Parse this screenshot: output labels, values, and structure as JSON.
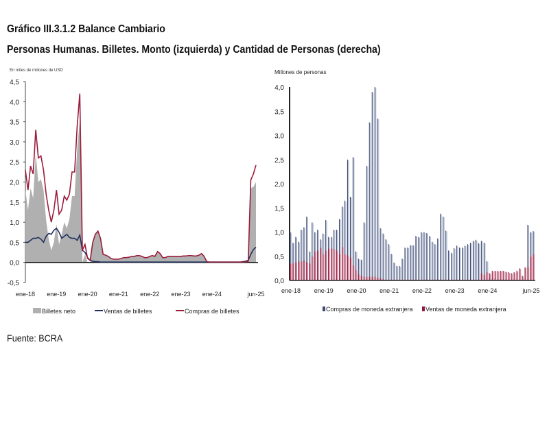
{
  "title": "Gráfico III.3.1.2 Balance Cambiario",
  "subtitle": "Personas Humanas. Billetes. Monto (izquierda) y Cantidad de Personas (derecha)",
  "source": "Fuente: BCRA",
  "colors": {
    "neto": "#b0b0b0",
    "ventas": "#1f2f5e",
    "compras": "#9b1b3a",
    "compras_bar": "#3d4a70",
    "ventas_bar": "#8e1b3c",
    "compras_bar_light": "#b9c2d6",
    "ventas_bar_light": "#d98ea3"
  },
  "chart_data": [
    {
      "type": "line",
      "ylabel": "En miles de millones de USD",
      "ylim": [
        -0.5,
        4.5
      ],
      "yticks": [
        "4,5",
        "4,0",
        "3,5",
        "3,0",
        "2,5",
        "2,0",
        "1,5",
        "1,0",
        "0,5",
        "0,0",
        "-0,5"
      ],
      "xticks": [
        {
          "label": "ene-18",
          "i": 0
        },
        {
          "label": "ene-19",
          "i": 12
        },
        {
          "label": "ene-20",
          "i": 24
        },
        {
          "label": "ene-21",
          "i": 36
        },
        {
          "label": "ene-22",
          "i": 48
        },
        {
          "label": "ene-23",
          "i": 60
        },
        {
          "label": "ene-24",
          "i": 72
        },
        {
          "label": "jun-25",
          "i": 89
        }
      ],
      "x_range": "ene-18 to jun-25 (monthly)",
      "series": [
        {
          "name": "Billetes neto",
          "type": "area",
          "values": [
            1.8,
            1.3,
            1.85,
            1.6,
            2.7,
            2.0,
            2.07,
            1.8,
            1.05,
            0.58,
            0.3,
            0.5,
            0.95,
            0.45,
            0.7,
            1.0,
            0.85,
            1.08,
            1.65,
            1.65,
            2.85,
            3.52,
            0.0,
            0.2,
            0.0,
            0.0,
            0.47,
            0.68,
            0.76,
            0.59,
            0.19,
            0.17,
            0.14,
            0.09,
            0.07,
            0.07,
            0.07,
            0.09,
            0.11,
            0.11,
            0.12,
            0.14,
            0.14,
            0.16,
            0.16,
            0.14,
            0.11,
            0.11,
            0.14,
            0.16,
            0.14,
            0.26,
            0.21,
            0.11,
            0.11,
            0.14,
            0.14,
            0.14,
            0.14,
            0.14,
            0.14,
            0.15,
            0.15,
            0.16,
            0.16,
            0.15,
            0.15,
            0.17,
            0.21,
            0.14,
            0.01,
            0.0,
            0,
            0,
            0,
            0,
            0,
            0,
            0,
            0,
            0,
            0,
            0,
            0,
            0,
            0,
            0,
            1.85,
            1.88,
            2.0
          ]
        },
        {
          "name": "Ventas de billetes",
          "type": "line",
          "values": [
            0.5,
            0.5,
            0.55,
            0.6,
            0.6,
            0.62,
            0.58,
            0.5,
            0.65,
            0.72,
            0.7,
            0.8,
            0.85,
            0.75,
            0.6,
            0.65,
            0.7,
            0.62,
            0.6,
            0.6,
            0.55,
            0.68,
            0.3,
            0.25,
            0.12,
            0.05,
            0.03,
            0.02,
            0.02,
            0.01,
            0.01,
            0.01,
            0.01,
            0.01,
            0.01,
            0.01,
            0.01,
            0.01,
            0.01,
            0.01,
            0.01,
            0.01,
            0.01,
            0.01,
            0.01,
            0.01,
            0.01,
            0.01,
            0.01,
            0.01,
            0.01,
            0.01,
            0.01,
            0.01,
            0.01,
            0.01,
            0.01,
            0.01,
            0.01,
            0.01,
            0.01,
            0.01,
            0.01,
            0.01,
            0.01,
            0.01,
            0.01,
            0.01,
            0.01,
            0.01,
            0.01,
            0.01,
            0.01,
            0.01,
            0.01,
            0.01,
            0.01,
            0.01,
            0.01,
            0.01,
            0.01,
            0.01,
            0.01,
            0.01,
            0.02,
            0.03,
            0.05,
            0.2,
            0.32,
            0.38
          ]
        },
        {
          "name": "Compras de billetes",
          "type": "line",
          "values": [
            2.3,
            1.8,
            2.4,
            2.2,
            3.3,
            2.6,
            2.65,
            2.3,
            1.7,
            1.3,
            1.0,
            1.3,
            1.8,
            1.2,
            1.3,
            1.65,
            1.55,
            1.7,
            2.25,
            2.25,
            3.4,
            4.2,
            0.3,
            0.45,
            0.1,
            0.05,
            0.5,
            0.7,
            0.78,
            0.6,
            0.2,
            0.18,
            0.15,
            0.1,
            0.08,
            0.08,
            0.08,
            0.1,
            0.12,
            0.12,
            0.13,
            0.15,
            0.15,
            0.17,
            0.17,
            0.15,
            0.12,
            0.12,
            0.15,
            0.17,
            0.15,
            0.27,
            0.22,
            0.12,
            0.12,
            0.15,
            0.15,
            0.15,
            0.15,
            0.15,
            0.15,
            0.16,
            0.16,
            0.17,
            0.17,
            0.16,
            0.16,
            0.18,
            0.22,
            0.15,
            0.02,
            0.01,
            0.01,
            0.01,
            0.01,
            0.01,
            0.01,
            0.01,
            0.01,
            0.01,
            0.01,
            0.01,
            0.01,
            0.01,
            0.01,
            0.02,
            0.02,
            2.05,
            2.2,
            2.42
          ]
        }
      ]
    },
    {
      "type": "bar",
      "ylabel": "Millones de personas",
      "ylim": [
        0,
        4.0
      ],
      "yticks": [
        "4,0",
        "3,5",
        "3,0",
        "2,5",
        "2,0",
        "1,5",
        "1,0",
        "0,5",
        "0,0"
      ],
      "xticks": [
        {
          "label": "ene-18",
          "i": 0
        },
        {
          "label": "ene-19",
          "i": 12
        },
        {
          "label": "ene-20",
          "i": 24
        },
        {
          "label": "ene-21",
          "i": 36
        },
        {
          "label": "ene-22",
          "i": 48
        },
        {
          "label": "ene-23",
          "i": 60
        },
        {
          "label": "ene-24",
          "i": 72
        },
        {
          "label": "jun-25",
          "i": 89
        }
      ],
      "series": [
        {
          "name": "Compras de moneda extranjera",
          "values": [
            1.0,
            0.78,
            0.9,
            0.8,
            1.05,
            1.1,
            1.32,
            0.6,
            1.2,
            1.0,
            1.05,
            0.85,
            0.97,
            1.25,
            0.9,
            0.9,
            1.05,
            1.05,
            1.27,
            1.53,
            1.65,
            2.5,
            1.73,
            2.55,
            0.6,
            0.45,
            0.43,
            1.2,
            2.37,
            3.27,
            3.9,
            4.0,
            3.35,
            1.08,
            0.97,
            0.85,
            0.75,
            0.55,
            0.37,
            0.3,
            0.3,
            0.45,
            0.68,
            0.68,
            0.73,
            0.73,
            0.92,
            0.9,
            1.0,
            1.0,
            0.98,
            0.92,
            0.8,
            0.75,
            0.87,
            1.38,
            1.32,
            1.03,
            0.62,
            0.57,
            0.67,
            0.72,
            0.68,
            0.68,
            0.72,
            0.75,
            0.78,
            0.82,
            0.84,
            0.77,
            0.82,
            0.78,
            0.4,
            0.05,
            0.05,
            0.05,
            0.03,
            0.03,
            0.03,
            0.03,
            0.03,
            0.03,
            0.03,
            0.03,
            0.03,
            0.1,
            0.03,
            1.15,
            1.0,
            1.02
          ]
        },
        {
          "name": "Ventas de moneda extranjera",
          "values": [
            0.35,
            0.36,
            0.38,
            0.4,
            0.4,
            0.42,
            0.38,
            0.36,
            0.5,
            0.6,
            0.62,
            0.68,
            0.55,
            0.62,
            0.66,
            0.67,
            0.65,
            0.62,
            0.55,
            0.7,
            0.55,
            0.52,
            0.48,
            0.32,
            0.22,
            0.13,
            0.1,
            0.08,
            0.08,
            0.08,
            0.08,
            0.08,
            0.06,
            0.05,
            0.03,
            0.02,
            0.02,
            0.02,
            0.02,
            0.02,
            0.02,
            0.02,
            0.02,
            0.02,
            0.02,
            0.02,
            0.02,
            0.02,
            0.02,
            0.02,
            0.02,
            0.02,
            0.02,
            0.02,
            0.02,
            0.02,
            0.02,
            0.02,
            0.02,
            0.02,
            0.02,
            0.02,
            0.02,
            0.02,
            0.02,
            0.02,
            0.02,
            0.02,
            0.02,
            0.02,
            0.15,
            0.12,
            0.18,
            0.15,
            0.2,
            0.2,
            0.2,
            0.2,
            0.2,
            0.18,
            0.17,
            0.15,
            0.17,
            0.2,
            0.25,
            0.08,
            0.27,
            0.28,
            0.5,
            0.55
          ]
        }
      ]
    }
  ]
}
